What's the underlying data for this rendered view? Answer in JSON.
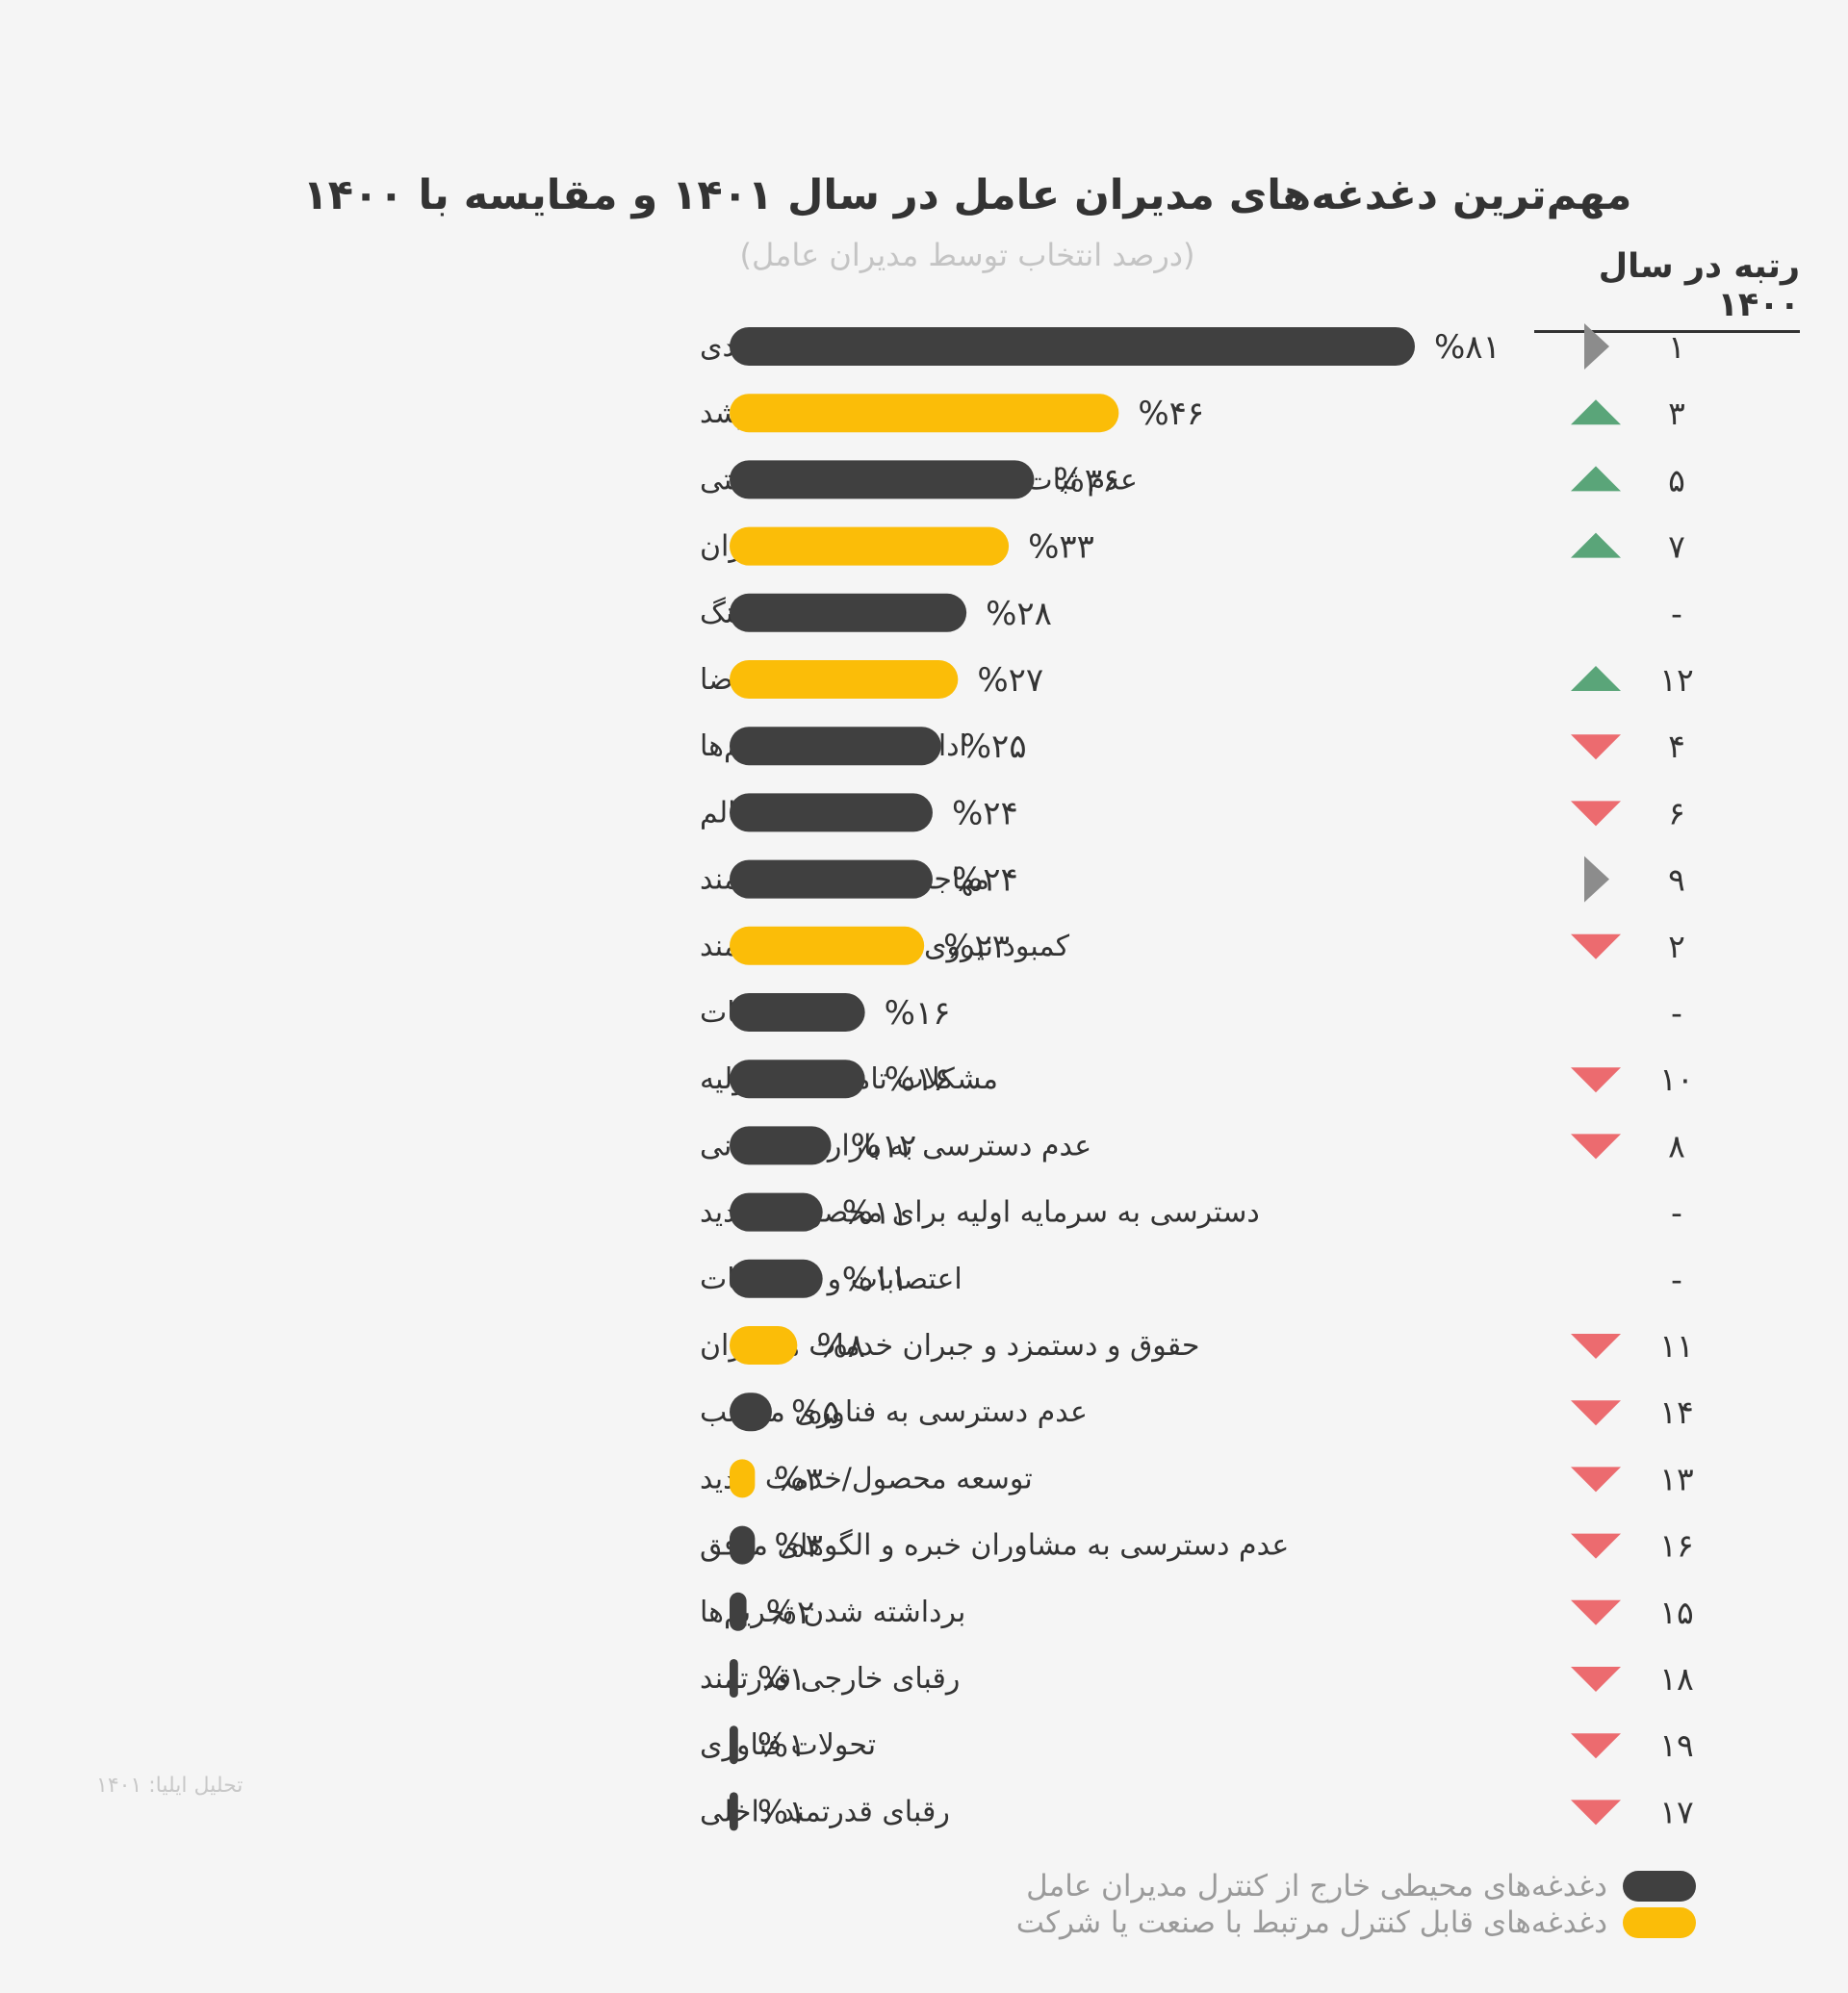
{
  "header": {
    "title": "مهم‌ترین دغدغه‌های مدیران عامل در سال ۱۴۰۱ و مقایسه با ۱۴۰۰",
    "subtitle": "(درصد انتخاب توسط مدیران عامل)",
    "rank_column_title": "رتبه در سال ۱۴۰۰"
  },
  "footer": {
    "source": "تحلیل ایلیا: ۱۴۰۱"
  },
  "legend": [
    {
      "label": "دغدغه‌های محیطی خارج از کنترل مدیران عامل",
      "color": "#404040"
    },
    {
      "label": "دغدغه‌های قابل کنترل مرتبط با صنعت یا شرکت",
      "color": "#fbbd08"
    }
  ],
  "colors": {
    "external": "#404040",
    "controllable": "#fbbd08",
    "up": "#5aa579",
    "down": "#ec6b6f",
    "same": "#8c8c8c"
  },
  "chart_data": {
    "type": "bar",
    "orientation": "horizontal",
    "xlim": [
      0,
      81
    ],
    "grid": false,
    "legend_position": "bottom",
    "value_suffix": "%",
    "categories": [
      "عدم ثبات سیاسی/ اقتصادی",
      "کمبود نقدینگی برای رشد",
      "عدم ثبات در قوانین و مقررات دولتی",
      "حفظ انگیزه همکاران",
      "اینترنت و فیلترینگ",
      "کمبود تقاضا",
      "ادامه‌دار شدن تحریم‌ها",
      "رقابت ناسالم",
      "مهاجرت نیروهای توانمند",
      "کمبود نیروی متخصص و توانمند",
      "بیمه و مالیات",
      "مشکلات تامین مواد اولیه",
      "عدم دسترسی به بازارهای جهانی",
      "دسترسی به سرمایه اولیه برای محصولات جدید",
      "اعتصابات و اعتراضات",
      "حقوق و دستمزد و جبران خدمات همکاران",
      "عدم دسترسی به فناوری مناسب",
      "توسعه محصول/خدمت جدید",
      "عدم دسترسی به مشاوران خبره و الگوهای موفق",
      "برداشته شدن تحریم‌ها",
      "رقبای خارجی قدرتمند",
      "تحولات فناوری",
      "رقبای قدرتمند داخلی"
    ],
    "values": [
      81,
      46,
      36,
      33,
      28,
      27,
      25,
      24,
      24,
      23,
      16,
      16,
      12,
      11,
      11,
      8,
      5,
      3,
      3,
      2,
      1,
      1,
      1
    ],
    "value_labels": [
      "%۸۱",
      "%۴۶",
      "%۳۶",
      "%۳۳",
      "%۲۸",
      "%۲۷",
      "%۲۵",
      "%۲۴",
      "%۲۴",
      "%۲۳",
      "%۱۶",
      "%۱۶",
      "%۱۲",
      "%۱۱",
      "%۱۱",
      "%۸",
      "%۵",
      "%۳",
      "%۳",
      "%۲",
      "%۱",
      "%۱",
      "%۱"
    ],
    "group": [
      "external",
      "controllable",
      "external",
      "controllable",
      "external",
      "controllable",
      "external",
      "external",
      "external",
      "controllable",
      "external",
      "external",
      "external",
      "external",
      "external",
      "controllable",
      "external",
      "controllable",
      "external",
      "external",
      "external",
      "external",
      "external"
    ],
    "rank_1400": [
      "۱",
      "۳",
      "۵",
      "۷",
      "-",
      "۱۲",
      "۴",
      "۶",
      "۹",
      "۲",
      "-",
      "۱۰",
      "۸",
      "-",
      "-",
      "۱۱",
      "۱۴",
      "۱۳",
      "۱۶",
      "۱۵",
      "۱۸",
      "۱۹",
      "۱۷"
    ],
    "trend": [
      "same",
      "up",
      "up",
      "up",
      "none",
      "up",
      "down",
      "down",
      "same",
      "down",
      "none",
      "down",
      "down",
      "none",
      "none",
      "down",
      "down",
      "down",
      "down",
      "down",
      "down",
      "down",
      "down"
    ]
  }
}
